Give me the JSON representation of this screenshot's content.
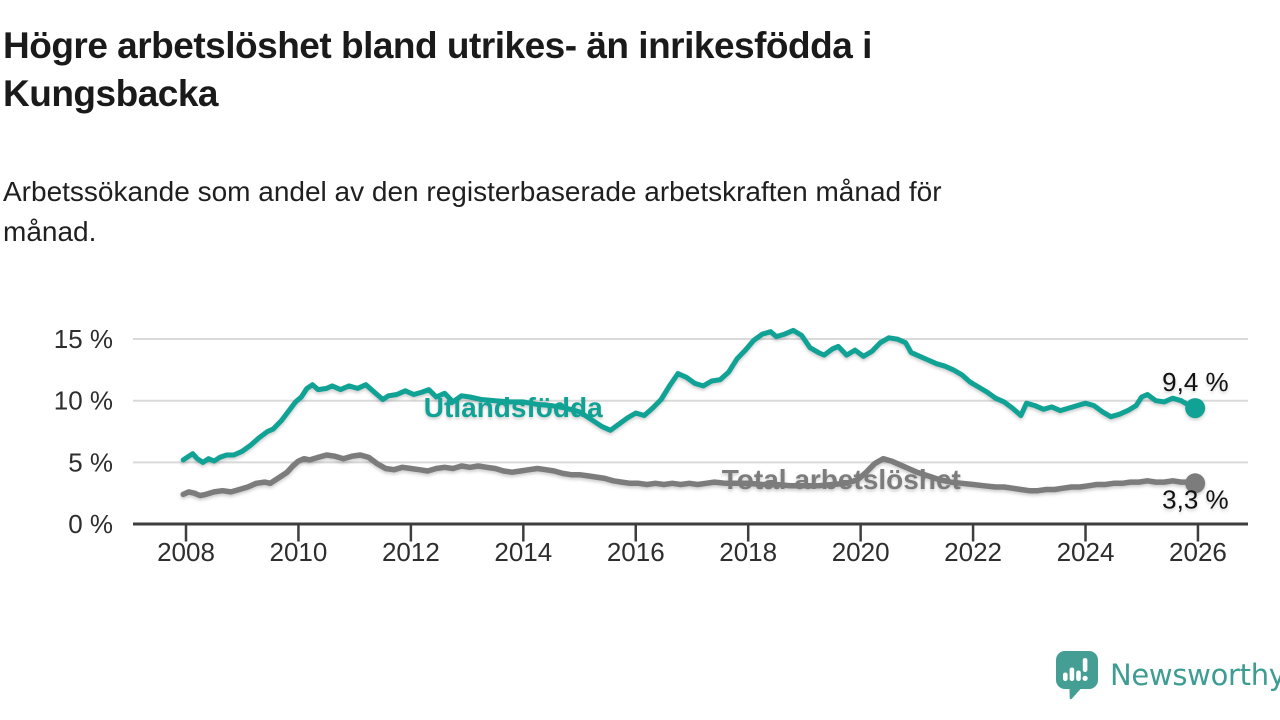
{
  "title": {
    "lines": [
      "Högre arbetslöshet bland utrikes- än inrikesfödda i",
      "Kungsbacka"
    ],
    "full": "Högre arbetslöshet bland utrikes- än inrikesfödda i Kungsbacka"
  },
  "subtitle": {
    "lines": [
      "Arbetssökande som andel av den registerbaserade arbetskraften månad för",
      "månad."
    ],
    "full": "Arbetssökande som andel av den registerbaserade arbetskraften månad för månad."
  },
  "footer": {
    "brand": "Newsworthy",
    "logo_color": "#459e94",
    "text_color": "#3e9d93"
  },
  "chart_data": {
    "type": "line",
    "title": "Högre arbetslöshet bland utrikes- än inrikesfödda i Kungsbacka",
    "subtitle": "Arbetssökande som andel av den registerbaserade arbetskraften månad för månad.",
    "grid": true,
    "legend_position": "inline-labels",
    "x_axis": {
      "ticks": [
        2008,
        2010,
        2012,
        2014,
        2016,
        2018,
        2020,
        2022,
        2024,
        2026
      ],
      "tick_labels": [
        "2008",
        "2010",
        "2012",
        "2014",
        "2016",
        "2018",
        "2020",
        "2022",
        "2024",
        "2026"
      ],
      "range": [
        2007.05,
        2026.9
      ]
    },
    "y_axis": {
      "ticks": [
        0,
        5,
        10,
        15
      ],
      "tick_labels": [
        "0 %",
        "5 %",
        "10 %",
        "15 %"
      ],
      "range": [
        0,
        16.2
      ],
      "grid_color": "#dadada",
      "axis_color": "#3e3e3e"
    },
    "series": [
      {
        "id": "utlandsfodda",
        "name": "Utlandsfödda",
        "color": "#0fa295",
        "width": 5,
        "end_dot_radius": 10,
        "label_anchor": {
          "year": 2012.23,
          "value": 8.68
        },
        "end_label": {
          "text": "9,4 %",
          "dx": -33,
          "dy": -17
        },
        "end_value": 9.4,
        "points": [
          [
            2007.95,
            5.2
          ],
          [
            2008.05,
            5.5
          ],
          [
            2008.12,
            5.7
          ],
          [
            2008.2,
            5.3
          ],
          [
            2008.3,
            5.0
          ],
          [
            2008.4,
            5.3
          ],
          [
            2008.5,
            5.1
          ],
          [
            2008.6,
            5.4
          ],
          [
            2008.72,
            5.6
          ],
          [
            2008.85,
            5.6
          ],
          [
            2009.0,
            5.9
          ],
          [
            2009.15,
            6.4
          ],
          [
            2009.3,
            7.0
          ],
          [
            2009.45,
            7.5
          ],
          [
            2009.55,
            7.7
          ],
          [
            2009.7,
            8.4
          ],
          [
            2009.85,
            9.3
          ],
          [
            2009.95,
            9.9
          ],
          [
            2010.05,
            10.3
          ],
          [
            2010.15,
            11.0
          ],
          [
            2010.25,
            11.3
          ],
          [
            2010.35,
            10.9
          ],
          [
            2010.5,
            11.0
          ],
          [
            2010.6,
            11.2
          ],
          [
            2010.75,
            10.9
          ],
          [
            2010.9,
            11.2
          ],
          [
            2011.05,
            11.0
          ],
          [
            2011.2,
            11.3
          ],
          [
            2011.35,
            10.7
          ],
          [
            2011.5,
            10.1
          ],
          [
            2011.6,
            10.4
          ],
          [
            2011.75,
            10.5
          ],
          [
            2011.9,
            10.8
          ],
          [
            2012.05,
            10.5
          ],
          [
            2012.2,
            10.7
          ],
          [
            2012.32,
            10.9
          ],
          [
            2012.45,
            10.3
          ],
          [
            2012.6,
            10.6
          ],
          [
            2012.75,
            9.9
          ],
          [
            2012.9,
            10.4
          ],
          [
            2013.05,
            10.3
          ],
          [
            2013.25,
            10.1
          ],
          [
            2013.5,
            10.0
          ],
          [
            2013.75,
            9.9
          ],
          [
            2014.0,
            9.9
          ],
          [
            2014.25,
            9.7
          ],
          [
            2014.5,
            9.6
          ],
          [
            2014.75,
            9.4
          ],
          [
            2015.0,
            9.1
          ],
          [
            2015.2,
            8.5
          ],
          [
            2015.4,
            7.9
          ],
          [
            2015.55,
            7.6
          ],
          [
            2015.7,
            8.1
          ],
          [
            2015.85,
            8.6
          ],
          [
            2016.0,
            9.0
          ],
          [
            2016.15,
            8.8
          ],
          [
            2016.3,
            9.4
          ],
          [
            2016.45,
            10.1
          ],
          [
            2016.6,
            11.2
          ],
          [
            2016.75,
            12.2
          ],
          [
            2016.9,
            11.9
          ],
          [
            2017.05,
            11.4
          ],
          [
            2017.2,
            11.2
          ],
          [
            2017.35,
            11.6
          ],
          [
            2017.5,
            11.7
          ],
          [
            2017.65,
            12.3
          ],
          [
            2017.8,
            13.4
          ],
          [
            2017.95,
            14.1
          ],
          [
            2018.1,
            14.9
          ],
          [
            2018.25,
            15.4
          ],
          [
            2018.4,
            15.6
          ],
          [
            2018.5,
            15.2
          ],
          [
            2018.65,
            15.4
          ],
          [
            2018.8,
            15.7
          ],
          [
            2018.95,
            15.3
          ],
          [
            2019.1,
            14.3
          ],
          [
            2019.25,
            13.9
          ],
          [
            2019.35,
            13.7
          ],
          [
            2019.5,
            14.2
          ],
          [
            2019.6,
            14.4
          ],
          [
            2019.75,
            13.7
          ],
          [
            2019.9,
            14.1
          ],
          [
            2020.05,
            13.6
          ],
          [
            2020.2,
            14.0
          ],
          [
            2020.35,
            14.7
          ],
          [
            2020.5,
            15.1
          ],
          [
            2020.65,
            15.0
          ],
          [
            2020.8,
            14.7
          ],
          [
            2020.9,
            13.9
          ],
          [
            2021.05,
            13.6
          ],
          [
            2021.2,
            13.3
          ],
          [
            2021.35,
            13.0
          ],
          [
            2021.5,
            12.8
          ],
          [
            2021.65,
            12.5
          ],
          [
            2021.8,
            12.1
          ],
          [
            2021.95,
            11.5
          ],
          [
            2022.1,
            11.1
          ],
          [
            2022.25,
            10.7
          ],
          [
            2022.4,
            10.2
          ],
          [
            2022.55,
            9.9
          ],
          [
            2022.7,
            9.4
          ],
          [
            2022.85,
            8.8
          ],
          [
            2022.95,
            9.8
          ],
          [
            2023.1,
            9.6
          ],
          [
            2023.25,
            9.3
          ],
          [
            2023.4,
            9.5
          ],
          [
            2023.55,
            9.2
          ],
          [
            2023.7,
            9.4
          ],
          [
            2023.85,
            9.6
          ],
          [
            2024.0,
            9.8
          ],
          [
            2024.15,
            9.6
          ],
          [
            2024.3,
            9.1
          ],
          [
            2024.45,
            8.7
          ],
          [
            2024.6,
            8.9
          ],
          [
            2024.75,
            9.2
          ],
          [
            2024.9,
            9.6
          ],
          [
            2025.0,
            10.3
          ],
          [
            2025.1,
            10.5
          ],
          [
            2025.25,
            10.0
          ],
          [
            2025.4,
            9.9
          ],
          [
            2025.55,
            10.2
          ],
          [
            2025.7,
            10.0
          ],
          [
            2025.85,
            9.6
          ],
          [
            2025.95,
            9.4
          ]
        ]
      },
      {
        "id": "total",
        "name": "Total arbetslöshet",
        "color": "#7c7c7c",
        "width": 5.5,
        "end_dot_radius": 10,
        "label_anchor": {
          "year": 2017.53,
          "value": 2.84
        },
        "end_label": {
          "text": "3,3 %",
          "dx": -33,
          "dy": 25
        },
        "end_value": 3.3,
        "points": [
          [
            2007.95,
            2.4
          ],
          [
            2008.05,
            2.6
          ],
          [
            2008.15,
            2.5
          ],
          [
            2008.25,
            2.3
          ],
          [
            2008.35,
            2.4
          ],
          [
            2008.5,
            2.6
          ],
          [
            2008.65,
            2.7
          ],
          [
            2008.8,
            2.6
          ],
          [
            2008.95,
            2.8
          ],
          [
            2009.1,
            3.0
          ],
          [
            2009.25,
            3.3
          ],
          [
            2009.4,
            3.4
          ],
          [
            2009.5,
            3.3
          ],
          [
            2009.6,
            3.6
          ],
          [
            2009.7,
            3.9
          ],
          [
            2009.8,
            4.2
          ],
          [
            2009.9,
            4.7
          ],
          [
            2010.0,
            5.1
          ],
          [
            2010.1,
            5.3
          ],
          [
            2010.2,
            5.2
          ],
          [
            2010.35,
            5.4
          ],
          [
            2010.5,
            5.6
          ],
          [
            2010.65,
            5.5
          ],
          [
            2010.8,
            5.3
          ],
          [
            2010.95,
            5.5
          ],
          [
            2011.1,
            5.6
          ],
          [
            2011.25,
            5.4
          ],
          [
            2011.4,
            4.9
          ],
          [
            2011.55,
            4.5
          ],
          [
            2011.7,
            4.4
          ],
          [
            2011.85,
            4.6
          ],
          [
            2012.0,
            4.5
          ],
          [
            2012.15,
            4.4
          ],
          [
            2012.3,
            4.3
          ],
          [
            2012.45,
            4.5
          ],
          [
            2012.6,
            4.6
          ],
          [
            2012.75,
            4.5
          ],
          [
            2012.9,
            4.7
          ],
          [
            2013.05,
            4.6
          ],
          [
            2013.2,
            4.7
          ],
          [
            2013.35,
            4.6
          ],
          [
            2013.5,
            4.5
          ],
          [
            2013.65,
            4.3
          ],
          [
            2013.8,
            4.2
          ],
          [
            2013.95,
            4.3
          ],
          [
            2014.1,
            4.4
          ],
          [
            2014.25,
            4.5
          ],
          [
            2014.4,
            4.4
          ],
          [
            2014.55,
            4.3
          ],
          [
            2014.7,
            4.1
          ],
          [
            2014.85,
            4.0
          ],
          [
            2015.0,
            4.0
          ],
          [
            2015.15,
            3.9
          ],
          [
            2015.3,
            3.8
          ],
          [
            2015.45,
            3.7
          ],
          [
            2015.6,
            3.5
          ],
          [
            2015.75,
            3.4
          ],
          [
            2015.9,
            3.3
          ],
          [
            2016.05,
            3.3
          ],
          [
            2016.2,
            3.2
          ],
          [
            2016.35,
            3.3
          ],
          [
            2016.5,
            3.2
          ],
          [
            2016.65,
            3.3
          ],
          [
            2016.8,
            3.2
          ],
          [
            2016.95,
            3.3
          ],
          [
            2017.1,
            3.2
          ],
          [
            2017.25,
            3.3
          ],
          [
            2017.4,
            3.4
          ],
          [
            2017.6,
            3.3
          ],
          [
            2017.8,
            3.3
          ],
          [
            2018.0,
            3.3
          ],
          [
            2018.25,
            3.2
          ],
          [
            2018.5,
            3.2
          ],
          [
            2018.75,
            3.1
          ],
          [
            2019.0,
            3.1
          ],
          [
            2019.25,
            3.1
          ],
          [
            2019.5,
            3.2
          ],
          [
            2019.75,
            3.3
          ],
          [
            2019.95,
            3.6
          ],
          [
            2020.1,
            4.2
          ],
          [
            2020.25,
            4.9
          ],
          [
            2020.4,
            5.3
          ],
          [
            2020.55,
            5.1
          ],
          [
            2020.7,
            4.8
          ],
          [
            2020.85,
            4.5
          ],
          [
            2021.0,
            4.2
          ],
          [
            2021.2,
            3.9
          ],
          [
            2021.4,
            3.6
          ],
          [
            2021.6,
            3.4
          ],
          [
            2021.8,
            3.3
          ],
          [
            2022.0,
            3.2
          ],
          [
            2022.2,
            3.1
          ],
          [
            2022.4,
            3.0
          ],
          [
            2022.55,
            3.0
          ],
          [
            2022.7,
            2.9
          ],
          [
            2022.85,
            2.8
          ],
          [
            2023.0,
            2.7
          ],
          [
            2023.15,
            2.7
          ],
          [
            2023.3,
            2.8
          ],
          [
            2023.45,
            2.8
          ],
          [
            2023.6,
            2.9
          ],
          [
            2023.75,
            3.0
          ],
          [
            2023.9,
            3.0
          ],
          [
            2024.05,
            3.1
          ],
          [
            2024.2,
            3.2
          ],
          [
            2024.35,
            3.2
          ],
          [
            2024.5,
            3.3
          ],
          [
            2024.65,
            3.3
          ],
          [
            2024.8,
            3.4
          ],
          [
            2024.95,
            3.4
          ],
          [
            2025.1,
            3.5
          ],
          [
            2025.25,
            3.4
          ],
          [
            2025.4,
            3.4
          ],
          [
            2025.55,
            3.5
          ],
          [
            2025.7,
            3.4
          ],
          [
            2025.85,
            3.4
          ],
          [
            2025.95,
            3.3
          ]
        ]
      }
    ]
  }
}
